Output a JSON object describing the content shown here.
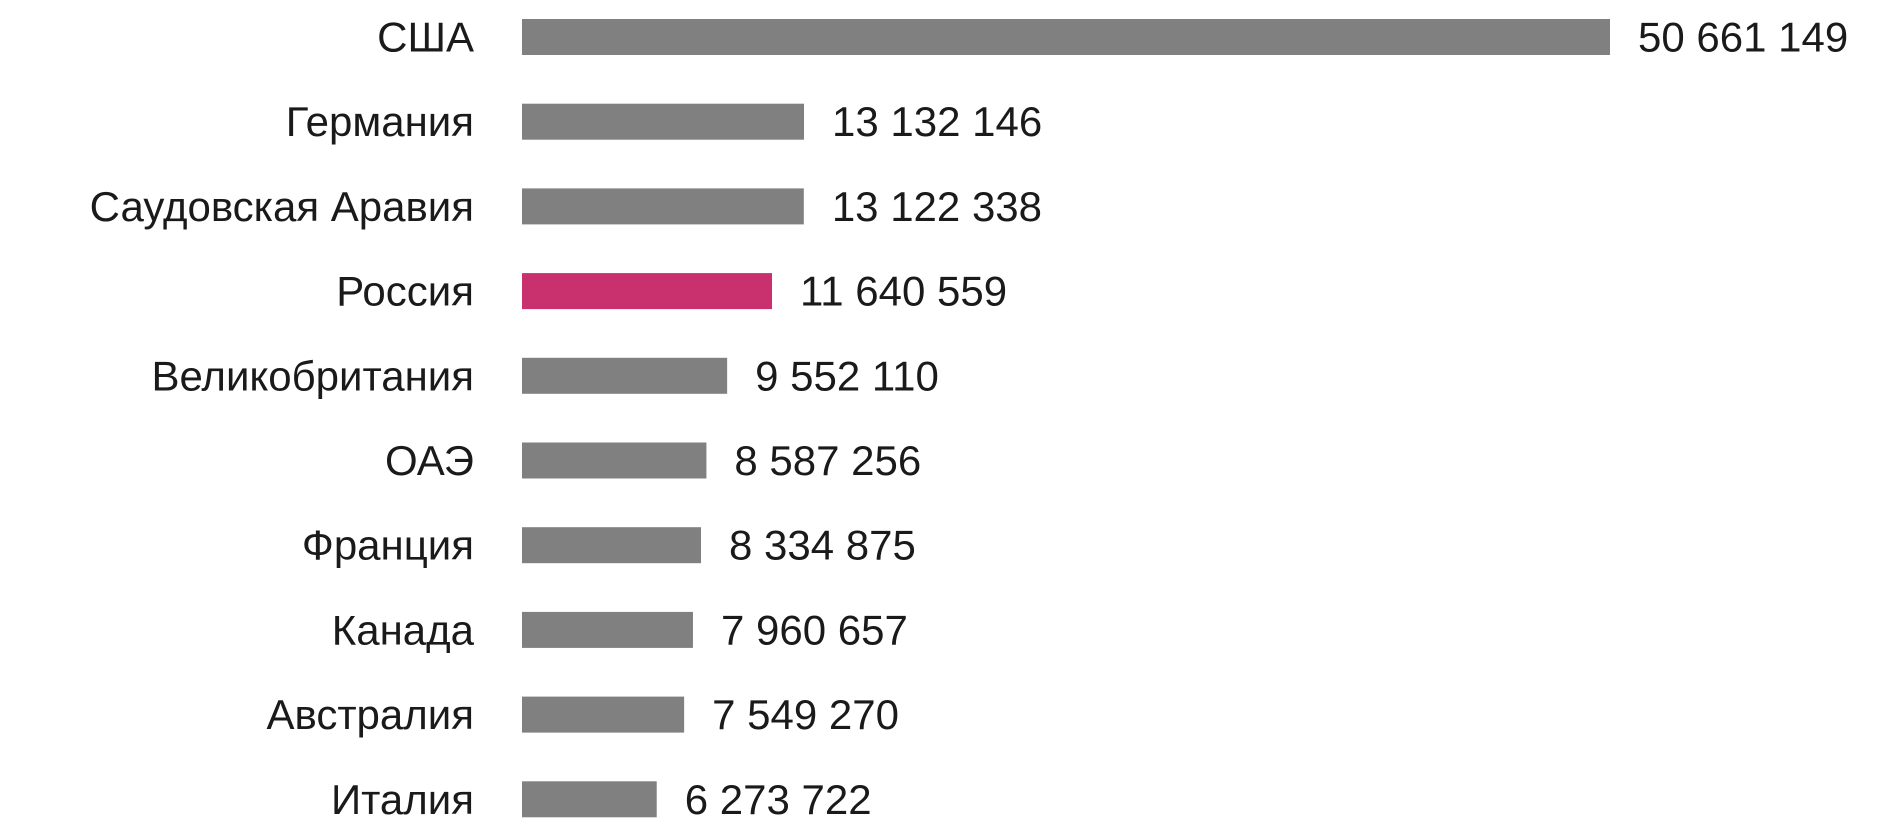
{
  "chart_data": {
    "type": "bar",
    "orientation": "horizontal",
    "title": "",
    "xlabel": "",
    "ylabel": "",
    "grid": false,
    "legend": "none",
    "categories": [
      "США",
      "Германия",
      "Саудовская Аравия",
      "Россия",
      "Великобритания",
      "ОАЭ",
      "Франция",
      "Канада",
      "Австралия",
      "Италия"
    ],
    "values": [
      50661149,
      13132146,
      13122338,
      11640559,
      9552110,
      8587256,
      8334875,
      7960657,
      7549270,
      6273722
    ],
    "value_labels": [
      "50 661 149",
      "13 132 146",
      "13 122 338",
      "11 640 559",
      "9 552 110",
      "8 587 256",
      "8 334 875",
      "7 960 657",
      "7 549 270",
      "6 273 722"
    ],
    "highlight": "Россия",
    "colors": {
      "default": "#808080",
      "highlight": "#c8306e"
    }
  }
}
